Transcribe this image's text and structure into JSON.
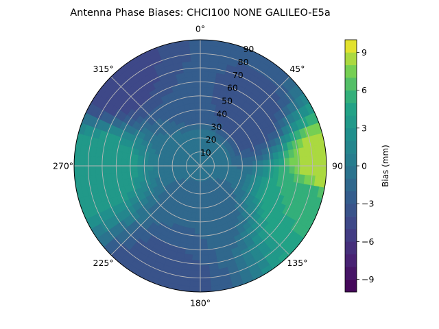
{
  "chart_data": {
    "type": "polar-contour",
    "title": "Antenna Phase Biases: CHCI100         NONE GALILEO-E5a",
    "theta_direction": "clockwise",
    "theta_zero": "north",
    "theta_labels": [
      "0°",
      "45°",
      "90",
      "135°",
      "180°",
      "225°",
      "270°",
      "315°"
    ],
    "theta_label_angles": [
      0,
      45,
      90,
      135,
      180,
      225,
      270,
      315
    ],
    "radial_ticks": [
      10,
      20,
      30,
      40,
      50,
      60,
      70,
      80,
      90
    ],
    "radial_labels": [
      "10",
      "20",
      "30",
      "40",
      "50",
      "60",
      "70",
      "80",
      "90"
    ],
    "rlim": [
      0,
      90
    ],
    "grid": true,
    "colormap": "viridis",
    "colorbar": {
      "label": "Bias (mm)",
      "range": [
        -10,
        10
      ],
      "levels": 20,
      "ticks": [
        -9,
        -6,
        -3,
        0,
        3,
        6,
        9
      ],
      "tick_labels": [
        "−9",
        "−6",
        "−3",
        "0",
        "3",
        "6",
        "9"
      ]
    },
    "field_samples": [
      {
        "azimuth": 0,
        "zenith": 45,
        "bias": -3
      },
      {
        "azimuth": 45,
        "zenith": 45,
        "bias": -4
      },
      {
        "azimuth": 90,
        "zenith": 88,
        "bias": 9
      },
      {
        "azimuth": 110,
        "zenith": 75,
        "bias": 5
      },
      {
        "azimuth": 270,
        "zenith": 70,
        "bias": 4
      },
      {
        "azimuth": 315,
        "zenith": 85,
        "bias": -5
      },
      {
        "azimuth": 200,
        "zenith": 88,
        "bias": -4
      },
      {
        "azimuth": 180,
        "zenith": 30,
        "bias": -2
      },
      {
        "azimuth": 0,
        "zenith": 10,
        "bias": 0
      }
    ]
  }
}
